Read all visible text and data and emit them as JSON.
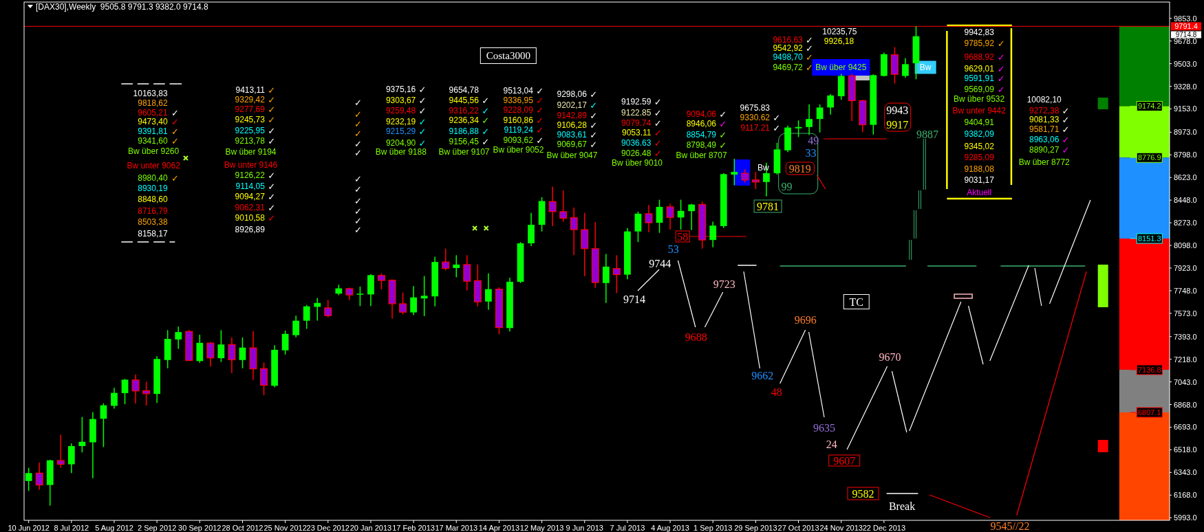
{
  "chart_data": {
    "type": "candlestick",
    "title": "[DAX30],Weekly  9505.8 9791.3 9382.0 9714.8",
    "x": [
      "2012-06-10",
      "2012-06-17",
      "2012-06-24",
      "2012-07-01",
      "2012-07-08",
      "2012-07-15",
      "2012-07-22",
      "2012-07-29",
      "2012-08-05",
      "2012-08-12",
      "2012-08-19",
      "2012-08-26",
      "2012-09-02",
      "2012-09-09",
      "2012-09-16",
      "2012-09-23",
      "2012-09-30",
      "2012-10-07",
      "2012-10-14",
      "2012-10-21",
      "2012-10-28",
      "2012-11-04",
      "2012-11-11",
      "2012-11-18",
      "2012-11-25",
      "2012-12-02",
      "2012-12-09",
      "2012-12-16",
      "2012-12-23",
      "2012-12-30",
      "2013-01-06",
      "2013-01-13",
      "2013-01-20",
      "2013-01-27",
      "2013-02-03",
      "2013-02-10",
      "2013-02-17",
      "2013-02-24",
      "2013-03-03",
      "2013-03-10",
      "2013-03-17",
      "2013-03-24",
      "2013-03-31",
      "2013-04-07",
      "2013-04-14",
      "2013-04-21",
      "2013-04-28",
      "2013-05-05",
      "2013-05-12",
      "2013-05-19",
      "2013-05-26",
      "2013-06-02",
      "2013-06-09",
      "2013-06-16",
      "2013-06-23",
      "2013-06-30",
      "2013-07-07",
      "2013-07-14",
      "2013-07-21",
      "2013-07-28",
      "2013-08-04",
      "2013-08-11",
      "2013-08-18",
      "2013-08-25",
      "2013-09-01",
      "2013-09-08",
      "2013-09-15",
      "2013-09-22",
      "2013-09-29",
      "2013-10-06",
      "2013-10-13",
      "2013-10-20",
      "2013-10-27",
      "2013-11-03",
      "2013-11-10",
      "2013-11-17",
      "2013-11-24",
      "2013-12-01",
      "2013-12-08",
      "2013-12-15",
      "2013-12-22",
      "2013-12-29",
      "2014-01-05",
      "2014-01-12"
    ],
    "ohlc": [
      [
        6277,
        6379,
        6200,
        6338
      ],
      [
        6338,
        6420,
        6210,
        6246
      ],
      [
        6246,
        6441,
        6087,
        6437
      ],
      [
        6435,
        6635,
        6379,
        6406
      ],
      [
        6406,
        6568,
        6338,
        6547
      ],
      [
        6547,
        6772,
        6498,
        6580
      ],
      [
        6576,
        6809,
        6298,
        6756
      ],
      [
        6758,
        6878,
        6539,
        6862
      ],
      [
        6858,
        6997,
        6837,
        6958
      ],
      [
        6956,
        7066,
        6870,
        7060
      ],
      [
        7058,
        7101,
        6876,
        6973
      ],
      [
        6975,
        7044,
        6860,
        6952
      ],
      [
        6950,
        7242,
        6880,
        7220
      ],
      [
        7212,
        7443,
        7148,
        7375
      ],
      [
        7371,
        7471,
        7298,
        7428
      ],
      [
        7433,
        7443,
        7208,
        7208
      ],
      [
        7204,
        7408,
        7191,
        7345
      ],
      [
        7343,
        7351,
        7161,
        7228
      ],
      [
        7226,
        7443,
        7197,
        7332
      ],
      [
        7332,
        7386,
        7111,
        7214
      ],
      [
        7212,
        7386,
        7148,
        7308
      ],
      [
        7306,
        7435,
        7058,
        7144
      ],
      [
        7146,
        7193,
        6940,
        7017
      ],
      [
        7013,
        7326,
        7001,
        7291
      ],
      [
        7287,
        7439,
        7255,
        7414
      ],
      [
        7404,
        7555,
        7388,
        7516
      ],
      [
        7516,
        7637,
        7453,
        7627
      ],
      [
        7623,
        7692,
        7516,
        7653
      ],
      [
        7615,
        7676,
        7543,
        7555
      ],
      [
        7725,
        7794,
        7713,
        7766
      ],
      [
        7764,
        7772,
        7676,
        7715
      ],
      [
        7721,
        7780,
        7629,
        7725
      ],
      [
        7719,
        7876,
        7629,
        7868
      ],
      [
        7866,
        7882,
        7758,
        7827
      ],
      [
        7829,
        7835,
        7533,
        7647
      ],
      [
        7647,
        7733,
        7565,
        7582
      ],
      [
        7580,
        7784,
        7559,
        7696
      ],
      [
        7688,
        7862,
        7551,
        7709
      ],
      [
        7704,
        8011,
        7627,
        7970
      ],
      [
        7970,
        8073,
        7905,
        7920
      ],
      [
        7923,
        8022,
        7852,
        7950
      ],
      [
        7950,
        8022,
        7750,
        7821
      ],
      [
        7825,
        7950,
        7627,
        7662
      ],
      [
        7664,
        7882,
        7600,
        7760
      ],
      [
        7760,
        7774,
        7412,
        7463
      ],
      [
        7459,
        7848,
        7433,
        7817
      ],
      [
        7817,
        8124,
        7807,
        8114
      ],
      [
        8114,
        8349,
        8093,
        8257
      ],
      [
        8257,
        8471,
        8206,
        8441
      ],
      [
        8437,
        8553,
        8247,
        8359
      ],
      [
        8359,
        8523,
        8281,
        8308
      ],
      [
        8312,
        8390,
        8022,
        8220
      ],
      [
        8220,
        8349,
        7860,
        8073
      ],
      [
        8073,
        8277,
        7770,
        7811
      ],
      [
        7807,
        8032,
        7653,
        7934
      ],
      [
        7919,
        8022,
        7729,
        7872
      ],
      [
        7872,
        8232,
        7837,
        8206
      ],
      [
        8206,
        8359,
        8124,
        8343
      ],
      [
        8343,
        8410,
        8200,
        8273
      ],
      [
        8273,
        8451,
        8195,
        8396
      ],
      [
        8396,
        8420,
        8220,
        8314
      ],
      [
        8314,
        8451,
        8220,
        8365
      ],
      [
        8363,
        8420,
        8216,
        8414
      ],
      [
        8414,
        8437,
        8073,
        8140
      ],
      [
        8140,
        8281,
        8083,
        8251
      ],
      [
        8247,
        8656,
        8232,
        8649
      ],
      [
        8645,
        8768,
        8563,
        8666
      ],
      [
        8656,
        8686,
        8584,
        8604
      ],
      [
        8604,
        8666,
        8533,
        8588
      ],
      [
        8588,
        8737,
        8477,
        8656
      ],
      [
        8656,
        8891,
        8645,
        8840
      ],
      [
        8833,
        9024,
        8819,
        9009
      ],
      [
        9003,
        9064,
        8936,
        9013
      ],
      [
        9013,
        9187,
        8952,
        9075
      ],
      [
        9075,
        9188,
        8971,
        9164
      ],
      [
        9164,
        9267,
        9109,
        9257
      ],
      [
        9251,
        9424,
        9223,
        9408
      ],
      [
        9408,
        9424,
        9060,
        9217
      ],
      [
        9217,
        9223,
        8975,
        9030
      ],
      [
        9030,
        9420,
        8955,
        9414
      ],
      [
        9408,
        9589,
        9404,
        9576
      ],
      [
        9572,
        9631,
        9349,
        9420
      ],
      [
        9408,
        9546,
        9394,
        9499
      ],
      [
        9505.8,
        9791.3,
        9382.0,
        9714.8
      ]
    ],
    "xlim": [
      "2012-06-07",
      "2014-06-27"
    ],
    "xticks": [
      {
        "value": "2012-06-10",
        "label": "10 Jun 2012"
      },
      {
        "value": "2012-07-08",
        "label": "8 Jul 2012"
      },
      {
        "value": "2012-08-05",
        "label": "5 Aug 2012"
      },
      {
        "value": "2012-09-02",
        "label": "2 Sep 2012"
      },
      {
        "value": "2012-09-30",
        "label": "30 Sep 2012"
      },
      {
        "value": "2012-10-28",
        "label": "28 Oct 2012"
      },
      {
        "value": "2012-11-25",
        "label": "25 Nov 2012"
      },
      {
        "value": "2012-12-23",
        "label": "23 Dec 2012"
      },
      {
        "value": "2013-01-20",
        "label": "20 Jan 2013"
      },
      {
        "value": "2013-02-17",
        "label": "17 Feb 2013"
      },
      {
        "value": "2013-03-17",
        "label": "17 Mar 2013"
      },
      {
        "value": "2013-04-14",
        "label": "14 Apr 2013"
      },
      {
        "value": "2013-05-12",
        "label": "12 May 2013"
      },
      {
        "value": "2013-06-09",
        "label": "9 Jun 2013"
      },
      {
        "value": "2013-07-07",
        "label": "7 Jul 2013"
      },
      {
        "value": "2013-08-04",
        "label": "4 Aug 2013"
      },
      {
        "value": "2013-09-01",
        "label": "1 Sep 2013"
      },
      {
        "value": "2013-09-29",
        "label": "29 Sep 2013"
      },
      {
        "value": "2013-10-27",
        "label": "27 Oct 2013"
      },
      {
        "value": "2013-11-24",
        "label": "24 Nov 2013"
      },
      {
        "value": "2013-12-22",
        "label": "22 Dec 2013"
      }
    ],
    "ylim": [
      5973,
      9979
    ],
    "yticks": [
      {
        "value": 5993,
        "label": "5993.0"
      },
      {
        "value": 6168,
        "label": "6168.0"
      },
      {
        "value": 6343,
        "label": "6343.0"
      },
      {
        "value": 6518,
        "label": "6518.0"
      },
      {
        "value": 6693,
        "label": "6693.0"
      },
      {
        "value": 6868,
        "label": "6868.0"
      },
      {
        "value": 7043,
        "label": "7043.0"
      },
      {
        "value": 7218,
        "label": "7218.0"
      },
      {
        "value": 7393,
        "label": "7393.0"
      },
      {
        "value": 7573,
        "label": "7573.0"
      },
      {
        "value": 7748,
        "label": "7748.0"
      },
      {
        "value": 7923,
        "label": "7923.0"
      },
      {
        "value": 8098,
        "label": "8098.0"
      },
      {
        "value": 8273,
        "label": "8273.0"
      },
      {
        "value": 8448,
        "label": "8448.0"
      },
      {
        "value": 8623,
        "label": "8623.0"
      },
      {
        "value": 8798,
        "label": "8798.0"
      },
      {
        "value": 8973,
        "label": "8973.0"
      },
      {
        "value": 9153,
        "label": "9153.0"
      },
      {
        "value": 9328,
        "label": "9328.0"
      },
      {
        "value": 9503,
        "label": "9503.0"
      },
      {
        "value": 9678,
        "label": "9678.0"
      },
      {
        "value": 9853,
        "label": "9853.0"
      }
    ],
    "ref_lines": [
      {
        "axis": "y",
        "value": 9791.4,
        "label": "9791.4",
        "color": "#ff0000"
      }
    ],
    "bands": [
      {
        "axis": "y",
        "from": 9174.2,
        "to": 9791.4,
        "label": "9174.2",
        "color": "#008000"
      },
      {
        "axis": "y",
        "from": 8776.9,
        "to": 9174.2,
        "label": "8776.9",
        "color": "#7fff00"
      },
      {
        "axis": "y",
        "from": 8151.3,
        "to": 8776.9,
        "label": "8151.3",
        "color": "#1e90ff"
      },
      {
        "axis": "y",
        "from": 7136.8,
        "to": 8151.3,
        "label": "7136.8",
        "color": "#ff0000"
      },
      {
        "axis": "y",
        "from": 6807.1,
        "to": 7136.8,
        "label": "6807.1",
        "color": "#808080"
      },
      {
        "axis": "y",
        "from": 5973,
        "to": 6807.1,
        "color": "#ff4500"
      }
    ],
    "annotations": [
      "10163,83",
      "9818,62",
      "9605,21",
      "✓",
      "9473,40",
      "✓",
      "9391,81",
      "✓",
      "9341,60",
      "✓",
      "Bw über 9260",
      "Bw unter 9062",
      "8980,40",
      "✓",
      "8930,19",
      "8848,60",
      "8716,79",
      "8503,38",
      "8158,17",
      "9413,11",
      "✓",
      "9329,42",
      "✓",
      "9277,69",
      "✓",
      "9245,73",
      "✓",
      "9225,95",
      "✓",
      "9213,78",
      "✓",
      "Bw über 9194",
      "Bw unter 9146",
      "9126,22",
      "✓",
      "9114,05",
      "✓",
      "9094,27",
      "✓",
      "9062,31",
      "✓",
      "9010,58",
      "✓",
      "8926,89",
      "✓",
      "✓",
      "✓",
      "✓",
      "✓",
      "✓",
      "✓",
      "✓",
      "✓",
      "✓",
      "✓",
      "✓",
      "9375,16",
      "✓",
      "9303,67",
      "✓",
      "9259,48",
      "✓",
      "9232,19",
      "✓",
      "9215,29",
      "✓",
      "9204,90",
      "✓",
      "Bw über 9188",
      "9654,78",
      "9445,56",
      "✓",
      "9316,22",
      "✓",
      "9236,34",
      "✓",
      "9186,88",
      "✓",
      "9156,45",
      "✓",
      "Bw über 9107",
      "9513,04",
      "✓",
      "9336,95",
      "✓",
      "9228,09",
      "✓",
      "9160,86",
      "✓",
      "9119,24",
      "✓",
      "9093,62",
      "✓",
      "Bw über 9052",
      "9298,06",
      "✓",
      "9202,17",
      "✓",
      "9142,89",
      "✓",
      "9106,28",
      "✓",
      "9083,61",
      "✓",
      "9069,67",
      "✓",
      "Bw über 9047",
      "9192.59",
      "✓",
      "9122.85",
      "✓",
      "9079.74",
      "✓",
      "9053.11",
      "✓",
      "9036.63",
      "✓",
      "9026.48",
      "✓",
      "Bw über 9010",
      "9094,06",
      "✓",
      "8946,06",
      "✓",
      "8854,79",
      "✓",
      "8798,49",
      "✓",
      "Bw über 8707",
      "9675.83",
      "9330.62",
      "✓",
      "9117.21",
      "✓",
      "9616,63",
      "✓",
      "9542,92",
      "✓",
      "9498,70",
      "✓",
      "9469,72",
      "✓",
      "9942,83",
      "9785,92",
      "✓",
      "9688,92",
      "✓",
      "9629,01",
      "✓",
      "9591,91",
      "✓",
      "9569,09",
      "✓",
      "Bw über 9532",
      "Bw unter 9442",
      "9404,91",
      "9382,09",
      "9345,02",
      "9285,09",
      "9188,08",
      "9031,17",
      "Aktuell",
      "10082,10",
      "9272,38",
      "✓",
      "9081,33",
      "✓",
      "9581,71",
      "✓",
      "8963,06",
      "✓",
      "8890,27",
      "✓",
      "Bw über 8772",
      "10235,75",
      "9926,18",
      "Bw über 9425",
      "Bw",
      "9943",
      "9917",
      "9887",
      "Costa3000",
      "Bw",
      "9819",
      "49",
      "33",
      "99",
      "9781",
      "58",
      "53",
      "9744",
      "9714",
      "9688",
      "9723",
      "9662",
      "48",
      "9696",
      "TC",
      "9635",
      "24",
      "9607",
      "9670",
      "9582",
      "Break",
      "9545//22",
      "9714.8"
    ]
  }
}
